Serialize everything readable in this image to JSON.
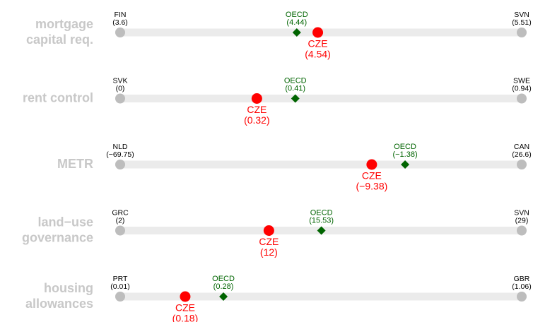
{
  "chart_data": {
    "type": "dot-range",
    "colors": {
      "range": "#ebebeb",
      "ends": "#bdbdbd",
      "OECD": "#006400",
      "CZE": "#ff0000",
      "labels": "#c8c8c8"
    },
    "rows": [
      {
        "label": [
          "mortgage",
          "capital req."
        ],
        "names": [
          "FIN",
          "SVN",
          "OECD",
          "CZE"
        ],
        "values": [
          3.6,
          5.51,
          4.44,
          4.54
        ],
        "value_labels": [
          "(3.6)",
          "(5.51)",
          "(4.44)",
          "(4.54)"
        ]
      },
      {
        "label": [
          "rent control"
        ],
        "names": [
          "SVK",
          "SWE",
          "OECD",
          "CZE"
        ],
        "values": [
          0,
          0.94,
          0.41,
          0.32
        ],
        "value_labels": [
          "(0)",
          "(0.94)",
          "(0.41)",
          "(0.32)"
        ]
      },
      {
        "label": [
          "METR"
        ],
        "names": [
          "NLD",
          "CAN",
          "OECD",
          "CZE"
        ],
        "values": [
          -69.75,
          26.6,
          -1.38,
          -9.38
        ],
        "value_labels": [
          "(−69.75)",
          "(26.6)",
          "(−1.38)",
          "(−9.38)"
        ]
      },
      {
        "label": [
          "land−use",
          "governance"
        ],
        "names": [
          "GRC",
          "SVN",
          "OECD",
          "CZE"
        ],
        "values": [
          2,
          29,
          15.53,
          12
        ],
        "value_labels": [
          "(2)",
          "(29)",
          "(15.53)",
          "(12)"
        ]
      },
      {
        "label": [
          "housing",
          "allowances"
        ],
        "names": [
          "PRT",
          "GBR",
          "OECD",
          "CZE"
        ],
        "values": [
          0.01,
          1.06,
          0.28,
          0.18
        ],
        "value_labels": [
          "(0.01)",
          "(1.06)",
          "(0.28)",
          "(0.18)"
        ]
      }
    ]
  }
}
